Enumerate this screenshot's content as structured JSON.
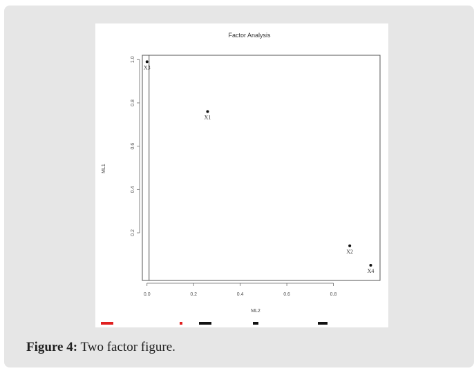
{
  "caption": {
    "label": "Figure 4:",
    "text": "Two factor figure."
  },
  "chart_data": {
    "type": "scatter",
    "title": "Factor Analysis",
    "xlabel": "ML2",
    "ylabel": "ML1",
    "xlim": [
      -0.02,
      1.0
    ],
    "ylim": [
      -0.02,
      1.02
    ],
    "x_ticks": [
      "0.0",
      "0.2",
      "0.4",
      "0.6",
      "0.8"
    ],
    "y_ticks": [
      "0.2",
      "0.4",
      "0.6",
      "0.8",
      "1.0"
    ],
    "vertical_reference_line": 0,
    "points": [
      {
        "label": "X3",
        "x": 0.0,
        "y": 0.99
      },
      {
        "label": "X1",
        "x": 0.26,
        "y": 0.76
      },
      {
        "label": "X2",
        "x": 0.87,
        "y": 0.14
      },
      {
        "label": "X4",
        "x": 0.96,
        "y": 0.05
      }
    ],
    "colors": {
      "points": "#111111",
      "strip_red": "#e02020",
      "strip_black": "#111111"
    }
  }
}
